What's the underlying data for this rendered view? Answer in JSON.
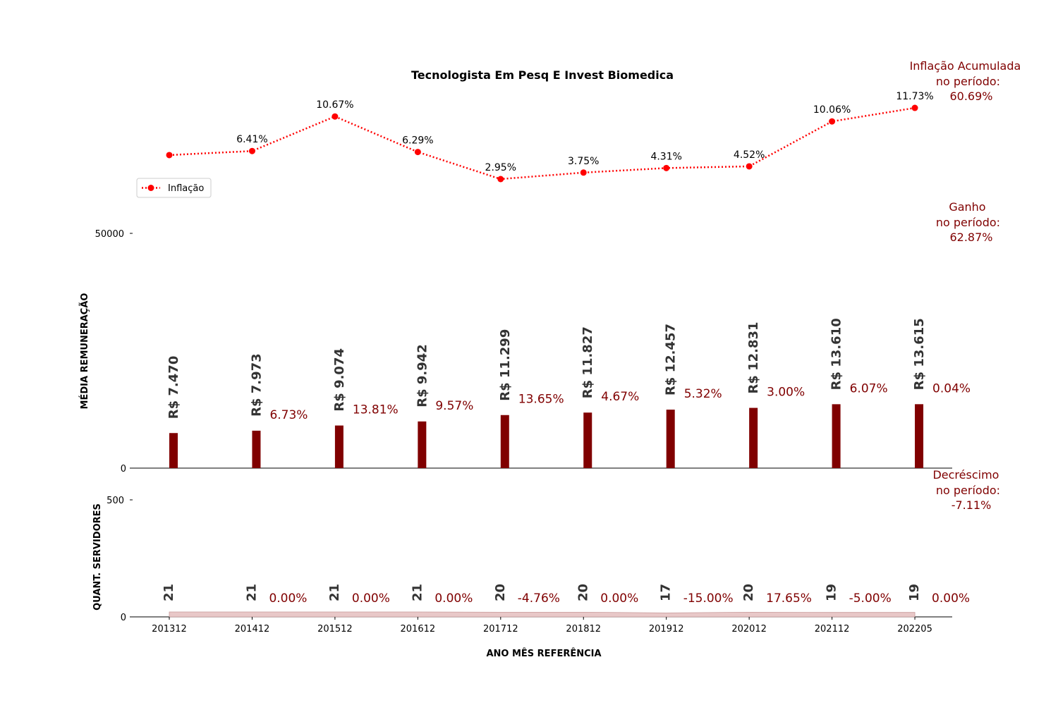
{
  "colors": {
    "inflation": "#ff0000",
    "bar": "#800000",
    "count_fill": "#e8c8c8",
    "count_line": "#c89a9a",
    "annotation": "#800000",
    "value_label": "#333333"
  },
  "chart_data": {
    "type": "bar",
    "title": "Tecnologista Em Pesq E Invest Biomedica",
    "xlabel": "ANO MÊS REFERÊNCIA",
    "categories": [
      "201312",
      "201412",
      "201512",
      "201612",
      "201712",
      "201812",
      "201912",
      "202012",
      "202112",
      "202205"
    ],
    "inflation": {
      "name": "Inflação",
      "style": "dotted line with circle markers",
      "values": [
        5.91,
        6.41,
        10.67,
        6.29,
        2.95,
        3.75,
        4.31,
        4.52,
        10.06,
        11.73
      ],
      "labels": [
        "",
        "6.41%",
        "10.67%",
        "6.29%",
        "2.95%",
        "3.75%",
        "4.31%",
        "4.52%",
        "10.06%",
        "11.73%"
      ]
    },
    "remuneration": {
      "ylabel": "MÉDIA REMUNERAÇÃO",
      "ylim": [
        0,
        50000
      ],
      "yticks": [
        "0",
        "50000"
      ],
      "values": [
        7470,
        7973,
        9074,
        9942,
        11299,
        11827,
        12457,
        12831,
        13610,
        13615
      ],
      "value_labels": [
        "R$ 7.470",
        "R$ 7.973",
        "R$ 9.074",
        "R$ 9.942",
        "R$ 11.299",
        "R$ 11.827",
        "R$ 12.457",
        "R$ 12.831",
        "R$ 13.610",
        "R$ 13.615"
      ],
      "change_labels": [
        "",
        "6.73%",
        "13.81%",
        "9.57%",
        "13.65%",
        "4.67%",
        "5.32%",
        "3.00%",
        "6.07%",
        "0.04%"
      ]
    },
    "servers": {
      "ylabel": "QUANT. SERVIDORES",
      "ylim": [
        0,
        500
      ],
      "yticks": [
        "0",
        "500"
      ],
      "values": [
        21,
        21,
        21,
        21,
        20,
        20,
        17,
        20,
        19,
        19
      ],
      "value_labels": [
        "21",
        "21",
        "21",
        "21",
        "20",
        "20",
        "17",
        "20",
        "19",
        "19"
      ],
      "change_labels": [
        "",
        "0.00%",
        "0.00%",
        "0.00%",
        "-4.76%",
        "0.00%",
        "-15.00%",
        "17.65%",
        "-5.00%",
        "0.00%"
      ]
    },
    "legend": {
      "placement": "upper-left",
      "entries": [
        "Inflação"
      ]
    },
    "side_annotations": {
      "inflation": [
        "Inflação Acumulada",
        "no período:",
        "60.69%"
      ],
      "gain": [
        "Ganho",
        "no período:",
        "62.87%"
      ],
      "decrease": [
        "Decréscimo",
        "no período:",
        "-7.11%"
      ]
    }
  }
}
